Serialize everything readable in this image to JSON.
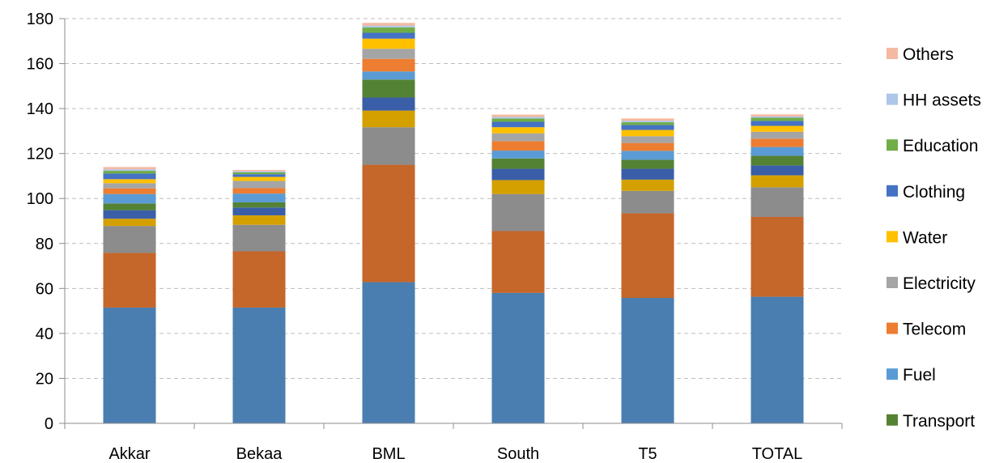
{
  "chart_data": {
    "type": "bar",
    "stacked": true,
    "categories": [
      "Akkar",
      "Bekaa",
      "BML",
      "South",
      "T5",
      "TOTAL"
    ],
    "ylim": [
      0,
      180
    ],
    "yticks": [
      0,
      20,
      40,
      60,
      80,
      100,
      120,
      140,
      160,
      180
    ],
    "grid": true,
    "legend_position": "right",
    "series": [
      {
        "name": "",
        "color": "#4a7eb0",
        "values": [
          51.5,
          51.5,
          62.8,
          58.0,
          55.8,
          56.3
        ]
      },
      {
        "name": "",
        "color": "#c5662a",
        "values": [
          24.3,
          25.0,
          52.2,
          27.5,
          37.6,
          35.5
        ]
      },
      {
        "name": "",
        "color": "#8c8c8c",
        "values": [
          12.0,
          11.8,
          16.7,
          16.5,
          10.0,
          13.2
        ]
      },
      {
        "name": "",
        "color": "#d4a000",
        "values": [
          3.2,
          4.2,
          7.4,
          6.2,
          5.0,
          5.3
        ]
      },
      {
        "name": "",
        "color": "#3a5ea8",
        "values": [
          3.8,
          3.5,
          5.8,
          5.0,
          4.8,
          4.4
        ]
      },
      {
        "name": "Transport",
        "color": "#548235",
        "values": [
          3.0,
          2.3,
          8.0,
          4.6,
          4.0,
          4.3
        ]
      },
      {
        "name": "Fuel",
        "color": "#5b9bd5",
        "values": [
          4.2,
          3.9,
          3.6,
          3.5,
          4.0,
          3.9
        ]
      },
      {
        "name": "Telecom",
        "color": "#ed7d31",
        "values": [
          2.5,
          2.4,
          5.6,
          4.2,
          3.5,
          3.7
        ]
      },
      {
        "name": "Electricity",
        "color": "#a5a5a5",
        "values": [
          2.3,
          3.2,
          4.5,
          3.5,
          3.0,
          3.1
        ]
      },
      {
        "name": "Water",
        "color": "#ffc000",
        "values": [
          1.8,
          1.8,
          4.5,
          2.7,
          2.8,
          2.6
        ]
      },
      {
        "name": "Clothing",
        "color": "#4472c4",
        "values": [
          2.5,
          1.2,
          2.6,
          2.4,
          2.2,
          2.2
        ]
      },
      {
        "name": "Education",
        "color": "#70ad47",
        "values": [
          1.2,
          0.8,
          2.4,
          1.5,
          1.2,
          1.4
        ]
      },
      {
        "name": "HH assets",
        "color": "#aec6e8",
        "values": [
          0.7,
          0.5,
          0.8,
          0.7,
          0.7,
          0.6
        ]
      },
      {
        "name": "Others",
        "color": "#f4b9a0",
        "values": [
          1.0,
          0.6,
          1.2,
          1.0,
          1.0,
          0.9
        ]
      }
    ],
    "legend_order": [
      "Others",
      "HH assets",
      "Education",
      "Clothing",
      "Water",
      "Electricity",
      "Telecom",
      "Fuel",
      "Transport"
    ]
  }
}
